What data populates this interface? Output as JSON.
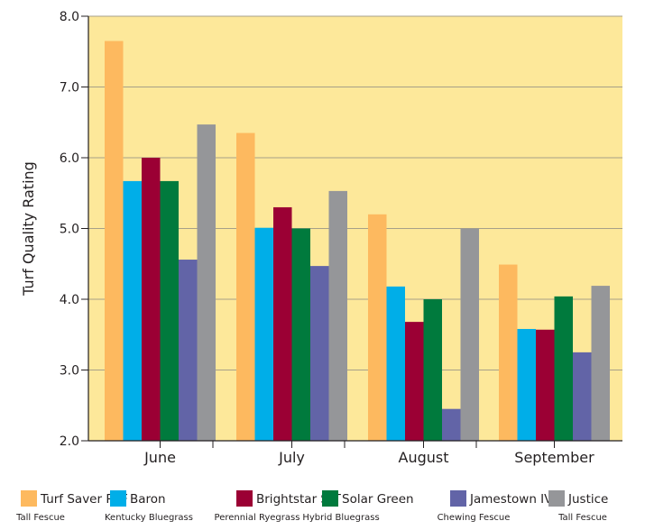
{
  "chart_data": {
    "type": "bar",
    "title": "",
    "xlabel": "",
    "ylabel": "Turf Quality Rating",
    "ylim": [
      2.0,
      8.0
    ],
    "yticks": [
      "2.0",
      "3.0",
      "4.0",
      "5.0",
      "6.0",
      "7.0",
      "8.0"
    ],
    "grid": true,
    "legend_position": "bottom",
    "categories": [
      "June",
      "July",
      "August",
      "September"
    ],
    "series": [
      {
        "name": "Turf Saver RTF",
        "sub": "Tall Fescue",
        "color": "#fdb95f",
        "values": [
          7.65,
          6.35,
          5.2,
          4.49
        ]
      },
      {
        "name": "Baron",
        "sub": "Kentucky Bluegrass",
        "color": "#00aee8",
        "values": [
          5.67,
          5.01,
          4.18,
          3.58
        ]
      },
      {
        "name": "Brightstar SLT",
        "sub": "Perennial Ryegrass",
        "color": "#9b0034",
        "values": [
          6.0,
          5.3,
          3.68,
          3.57
        ]
      },
      {
        "name": "Solar Green",
        "sub": "Hybrid Bluegrass",
        "color": "#007a3d",
        "values": [
          5.67,
          5.0,
          4.0,
          4.04
        ]
      },
      {
        "name": "Jamestown IV",
        "sub": "Chewing Fescue",
        "color": "#6264a7",
        "values": [
          4.56,
          4.47,
          2.45,
          3.25
        ]
      },
      {
        "name": "Justice",
        "sub": "Tall Fescue",
        "color": "#959699",
        "values": [
          6.47,
          5.53,
          5.0,
          4.19
        ]
      }
    ],
    "colors": {
      "plot_background": "#fde89a",
      "gridline": "#a7a088",
      "axis": "#231f20"
    }
  }
}
